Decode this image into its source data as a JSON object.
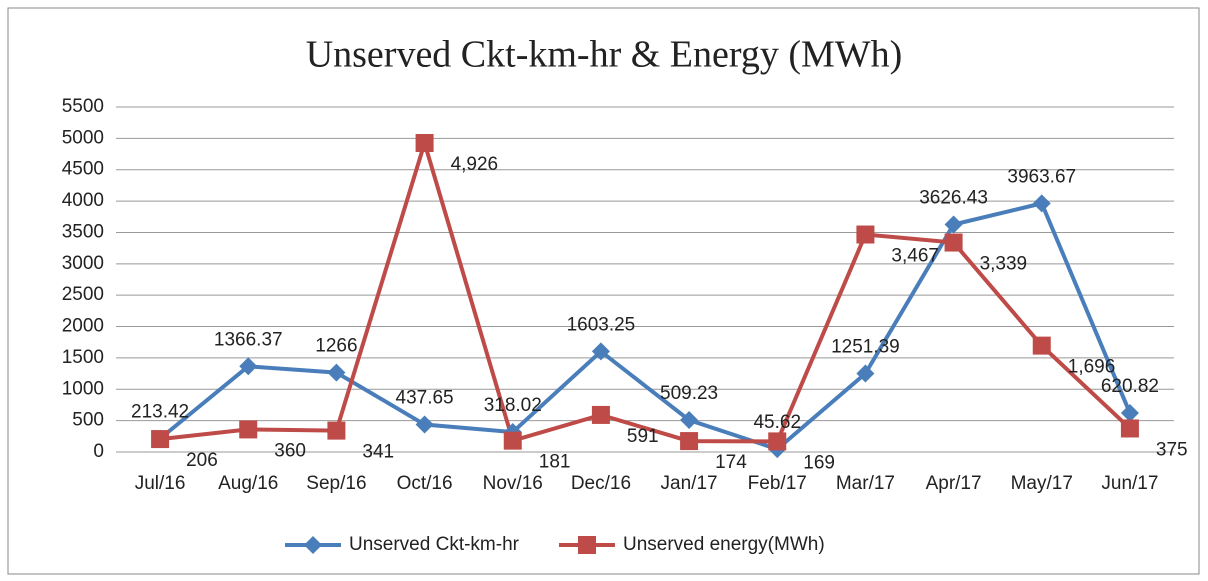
{
  "chart_data": {
    "type": "line",
    "title": "Unserved Ckt-km-hr & Energy (MWh)",
    "categories": [
      "Jul/16",
      "Aug/16",
      "Sep/16",
      "Oct/16",
      "Nov/16",
      "Dec/16",
      "Jan/17",
      "Feb/17",
      "Mar/17",
      "Apr/17",
      "May/17",
      "Jun/17"
    ],
    "series": [
      {
        "name": "Unserved Ckt-km-hr",
        "color": "#4a7ebb",
        "marker": "diamond",
        "values": [
          213.42,
          1366.37,
          1266,
          437.65,
          318.02,
          1603.25,
          509.23,
          45.62,
          1251.39,
          3626.43,
          3963.67,
          620.82
        ]
      },
      {
        "name": "Unserved energy(MWh)",
        "color": "#be4b48",
        "marker": "square",
        "values": [
          206,
          360,
          341,
          4926,
          181,
          591,
          174,
          169,
          3467,
          3339,
          1696,
          375
        ],
        "value_labels": [
          "206",
          "360",
          "341",
          "4,926",
          "181",
          "591",
          "174",
          "169",
          "3,467",
          "3,339",
          "1,696",
          "375"
        ]
      }
    ],
    "ylim": [
      0,
      5500
    ],
    "yticks": [
      0,
      500,
      1000,
      1500,
      2000,
      2500,
      3000,
      3500,
      4000,
      4500,
      5000,
      5500
    ],
    "grid": true,
    "legend": "bottom"
  }
}
